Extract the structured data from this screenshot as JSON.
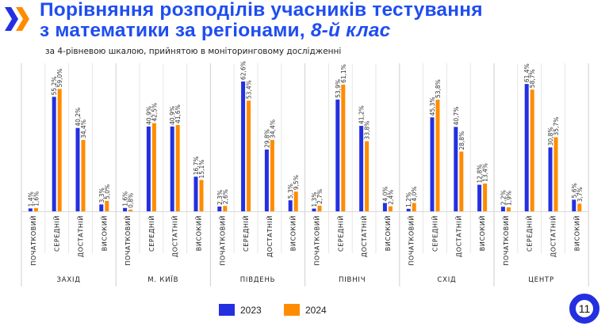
{
  "header": {
    "title_line1": "Порівняння розподілів учасників тестування",
    "title_line2": "з математики за регіонами, ",
    "title_emphasis": "8-й клас",
    "subtitle": "за 4-рівневою шкалою, прийнятою в моніторинговому дослідженні"
  },
  "page_number": "11",
  "colors": {
    "2023": "#2430e0",
    "2024": "#ff8c00",
    "title": "#1f4df0"
  },
  "chart_data": {
    "type": "bar",
    "levels": [
      "ПОЧАТКОВИЙ",
      "СЕРЕДНІЙ",
      "ДОСТАТНІЙ",
      "ВИСОКИЙ"
    ],
    "regions": [
      "ЗАХІД",
      "М. КИЇВ",
      "ПІВДЕНЬ",
      "ПІВНІЧ",
      "СХІД",
      "ЦЕНТР"
    ],
    "series": [
      {
        "name": "2023",
        "values": [
          [
            1.4,
            55.2,
            40.2,
            3.3
          ],
          [
            1.6,
            40.9,
            40.9,
            16.7
          ],
          [
            2.3,
            62.6,
            29.8,
            5.3
          ],
          [
            1.3,
            53.9,
            41.2,
            4.0
          ],
          [
            1.2,
            45.3,
            40.7,
            12.8
          ],
          [
            2.2,
            61.4,
            30.8,
            5.6
          ]
        ]
      },
      {
        "name": "2024",
        "values": [
          [
            1.6,
            59.0,
            34.4,
            5.0
          ],
          [
            0.8,
            42.5,
            41.6,
            15.1
          ],
          [
            2.6,
            53.4,
            34.4,
            9.5
          ],
          [
            2.7,
            61.1,
            33.8,
            2.4
          ],
          [
            4.0,
            53.8,
            28.8,
            13.4
          ],
          [
            1.9,
            58.7,
            35.7,
            3.7
          ]
        ]
      }
    ],
    "value_format": "percent with comma decimal",
    "legend": "bottom-center",
    "grid": "vertical category separators"
  }
}
